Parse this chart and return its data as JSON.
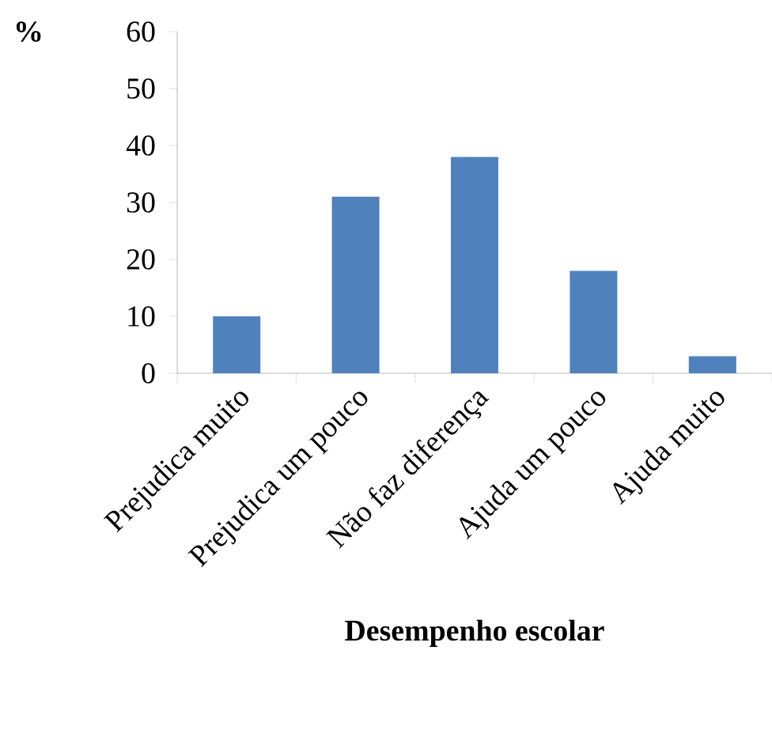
{
  "chart_data": {
    "type": "bar",
    "categories": [
      "Prejudica muito",
      "Prejudica um pouco",
      "Não faz diferença",
      "Ajuda um pouco",
      "Ajuda muito"
    ],
    "values": [
      10,
      31,
      38,
      18,
      3
    ],
    "color": "#4f81bd",
    "ylabel": "%",
    "xlabel": "Desempenho escolar",
    "ylim": [
      0,
      60
    ],
    "yticks": [
      0,
      10,
      20,
      30,
      40,
      50,
      60
    ],
    "grid": false
  }
}
